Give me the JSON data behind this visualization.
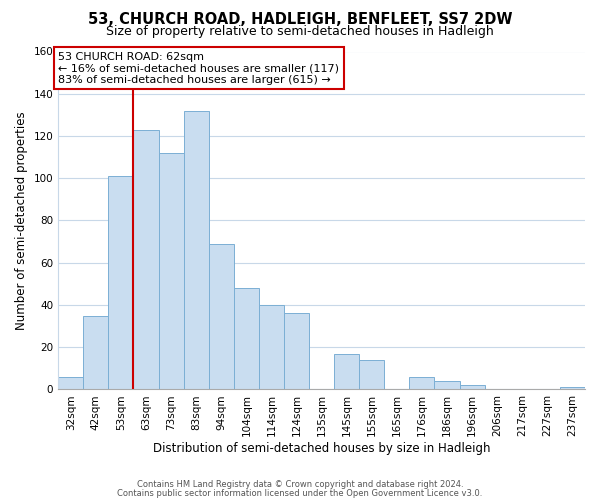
{
  "title": "53, CHURCH ROAD, HADLEIGH, BENFLEET, SS7 2DW",
  "subtitle": "Size of property relative to semi-detached houses in Hadleigh",
  "xlabel": "Distribution of semi-detached houses by size in Hadleigh",
  "ylabel": "Number of semi-detached properties",
  "footer_line1": "Contains HM Land Registry data © Crown copyright and database right 2024.",
  "footer_line2": "Contains public sector information licensed under the Open Government Licence v3.0.",
  "bin_labels": [
    "32sqm",
    "42sqm",
    "53sqm",
    "63sqm",
    "73sqm",
    "83sqm",
    "94sqm",
    "104sqm",
    "114sqm",
    "124sqm",
    "135sqm",
    "145sqm",
    "155sqm",
    "165sqm",
    "176sqm",
    "186sqm",
    "196sqm",
    "206sqm",
    "217sqm",
    "227sqm",
    "237sqm"
  ],
  "bar_values": [
    6,
    35,
    101,
    123,
    112,
    132,
    69,
    48,
    40,
    36,
    0,
    17,
    14,
    0,
    6,
    4,
    2,
    0,
    0,
    0,
    1
  ],
  "bar_color": "#c9ddf0",
  "bar_edge_color": "#7bafd4",
  "annotation_title": "53 CHURCH ROAD: 62sqm",
  "annotation_line1": "← 16% of semi-detached houses are smaller (117)",
  "annotation_line2": "83% of semi-detached houses are larger (615) →",
  "annotation_box_color": "#ffffff",
  "annotation_box_edge": "#cc0000",
  "redline_color": "#cc0000",
  "ylim": [
    0,
    160
  ],
  "yticks": [
    0,
    20,
    40,
    60,
    80,
    100,
    120,
    140,
    160
  ],
  "background_color": "#ffffff",
  "grid_color": "#c8d8e8"
}
